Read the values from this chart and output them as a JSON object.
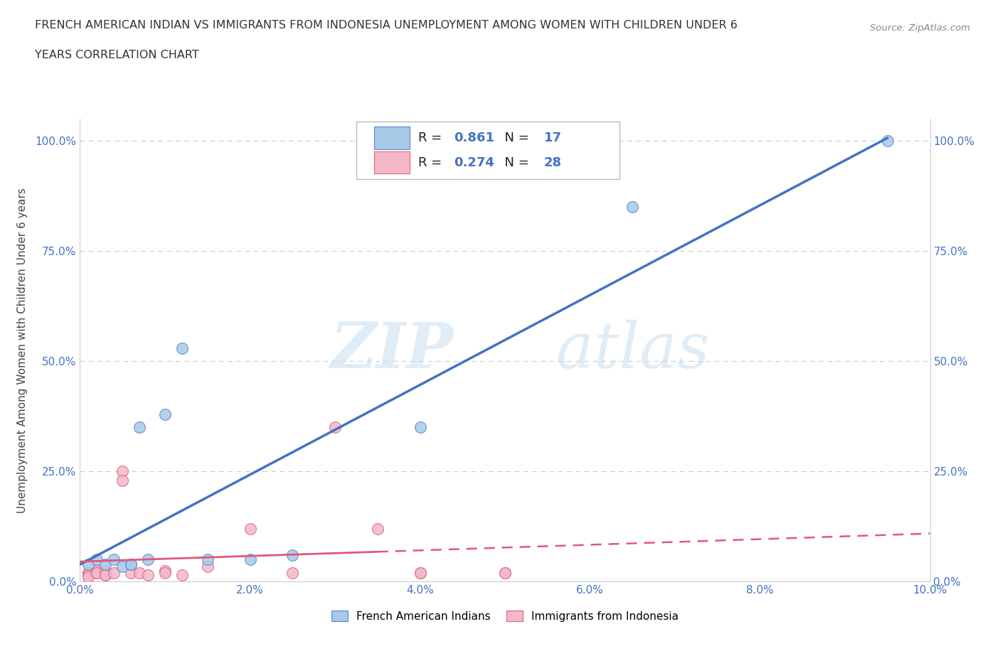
{
  "title_line1": "FRENCH AMERICAN INDIAN VS IMMIGRANTS FROM INDONESIA UNEMPLOYMENT AMONG WOMEN WITH CHILDREN UNDER 6",
  "title_line2": "YEARS CORRELATION CHART",
  "source": "Source: ZipAtlas.com",
  "ylabel": "Unemployment Among Women with Children Under 6 years",
  "xlim": [
    0.0,
    0.1
  ],
  "ylim": [
    0.0,
    1.05
  ],
  "xticks": [
    0.0,
    0.02,
    0.04,
    0.06,
    0.08,
    0.1
  ],
  "xtick_labels": [
    "0.0%",
    "2.0%",
    "4.0%",
    "6.0%",
    "8.0%",
    "10.0%"
  ],
  "yticks": [
    0.0,
    0.25,
    0.5,
    0.75,
    1.0
  ],
  "ytick_labels": [
    "0.0%",
    "25.0%",
    "50.0%",
    "75.0%",
    "100.0%"
  ],
  "blue_scatter_x": [
    0.001,
    0.002,
    0.003,
    0.004,
    0.005,
    0.006,
    0.006,
    0.007,
    0.008,
    0.01,
    0.012,
    0.015,
    0.02,
    0.025,
    0.04,
    0.065,
    0.095
  ],
  "blue_scatter_y": [
    0.04,
    0.05,
    0.04,
    0.05,
    0.035,
    0.04,
    0.04,
    0.35,
    0.05,
    0.38,
    0.53,
    0.05,
    0.05,
    0.06,
    0.35,
    0.85,
    1.0
  ],
  "pink_scatter_x": [
    0.001,
    0.001,
    0.001,
    0.001,
    0.002,
    0.002,
    0.002,
    0.003,
    0.003,
    0.003,
    0.004,
    0.005,
    0.005,
    0.006,
    0.007,
    0.008,
    0.01,
    0.01,
    0.012,
    0.015,
    0.02,
    0.025,
    0.03,
    0.035,
    0.04,
    0.04,
    0.05,
    0.05
  ],
  "pink_scatter_y": [
    0.02,
    0.02,
    0.015,
    0.01,
    0.025,
    0.02,
    0.02,
    0.025,
    0.015,
    0.015,
    0.02,
    0.25,
    0.23,
    0.02,
    0.02,
    0.015,
    0.025,
    0.02,
    0.015,
    0.035,
    0.12,
    0.02,
    0.35,
    0.12,
    0.02,
    0.02,
    0.02,
    0.02
  ],
  "blue_color": "#a8c8e8",
  "pink_color": "#f4b8c8",
  "blue_edge_color": "#5588cc",
  "pink_edge_color": "#e06080",
  "blue_line_color": "#4472c4",
  "pink_line_color": "#e05878",
  "blue_r": 0.861,
  "blue_n": 17,
  "pink_r": 0.274,
  "pink_n": 28,
  "watermark_zip": "ZIP",
  "watermark_atlas": "atlas",
  "background_color": "#ffffff",
  "grid_color": "#cccccc",
  "tick_color": "#4472c4",
  "label_color": "#444444"
}
